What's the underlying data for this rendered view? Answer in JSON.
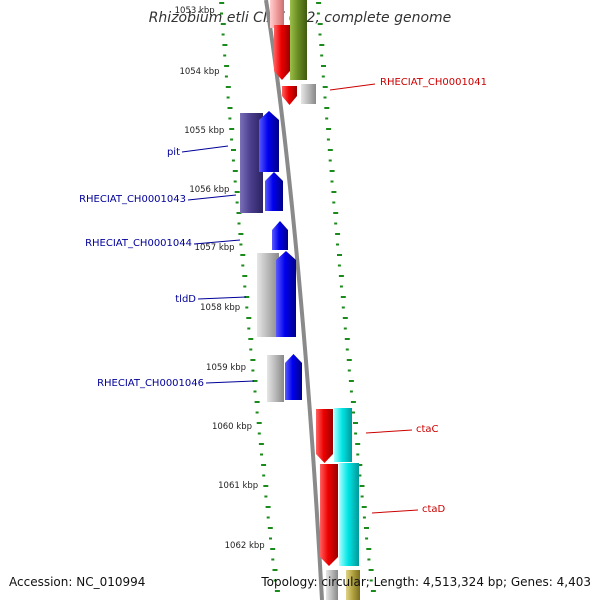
{
  "title": "Rhizobium etli CIAT 652, complete genome",
  "footer": {
    "accession": "Accession: NC_010994",
    "summary": "Topology: circular; Length: 4,513,324 bp; Genes: 4,403"
  },
  "ruler": {
    "unit": "kbp",
    "labels": [
      "1053 kbp",
      "1054 kbp",
      "1055 kbp",
      "1056 kbp",
      "1057 kbp",
      "1058 kbp",
      "1059 kbp",
      "1060 kbp",
      "1061 kbp",
      "1062 kbp"
    ]
  },
  "genes": [
    {
      "label": "RHECIAT_CH0001041",
      "label_color": "#cc0000",
      "side": "right"
    },
    {
      "label": "pit",
      "label_color": "#000099",
      "side": "left"
    },
    {
      "label": "RHECIAT_CH0001043",
      "label_color": "#000099",
      "side": "left"
    },
    {
      "label": "RHECIAT_CH0001044",
      "label_color": "#000099",
      "side": "left"
    },
    {
      "label": "tldD",
      "label_color": "#000099",
      "side": "left"
    },
    {
      "label": "RHECIAT_CH0001046",
      "label_color": "#000099",
      "side": "left"
    },
    {
      "label": "ctaC",
      "label_color": "#cc0000",
      "side": "right"
    },
    {
      "label": "ctaD",
      "label_color": "#cc0000",
      "side": "right"
    }
  ],
  "colors": {
    "backbone": "#8a8a8a",
    "tick": "#1a8a1a",
    "red": "#ee0000",
    "blue": "#0000ee",
    "navy": "#4b3f8f",
    "gray": "#b8b8b8",
    "olive": "#6b8e23",
    "cyan": "#00e5e5",
    "khaki": "#b5a642",
    "pink": "#f4a0a0"
  }
}
